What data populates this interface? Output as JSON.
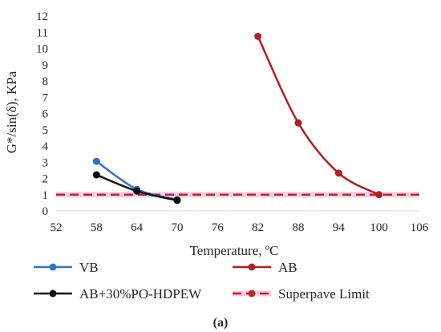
{
  "chart_data": {
    "type": "line",
    "title": "",
    "xlabel": "Temperature, ºC",
    "ylabel": "G*/sin(δ), KPa",
    "xlim": [
      52,
      106
    ],
    "ylim": [
      0,
      12
    ],
    "xticks": [
      52,
      58,
      64,
      70,
      76,
      82,
      88,
      94,
      100,
      106
    ],
    "yticks": [
      0,
      1,
      2,
      3,
      4,
      5,
      6,
      7,
      8,
      9,
      10,
      11,
      12
    ],
    "grid": false,
    "legend_position": "bottom",
    "series": [
      {
        "name": "VB",
        "color": "#2e75c9",
        "style": "solid",
        "x": [
          58,
          64,
          70
        ],
        "y": [
          3.05,
          1.33,
          0.7
        ]
      },
      {
        "name": "AB",
        "color": "#b21f1f",
        "style": "solid",
        "x": [
          82,
          88,
          94,
          100
        ],
        "y": [
          10.75,
          5.42,
          2.33,
          1.0
        ]
      },
      {
        "name": "AB+30%PO-HDPEW",
        "color": "#0d0d0d",
        "style": "solid",
        "x": [
          58,
          64,
          70
        ],
        "y": [
          2.22,
          1.22,
          0.65
        ]
      },
      {
        "name": "Superpave Limit",
        "color": "#c0251f",
        "style": "dashed",
        "x": [
          52,
          106
        ],
        "y": [
          1.0,
          1.0
        ]
      }
    ]
  },
  "caption": "(a)"
}
